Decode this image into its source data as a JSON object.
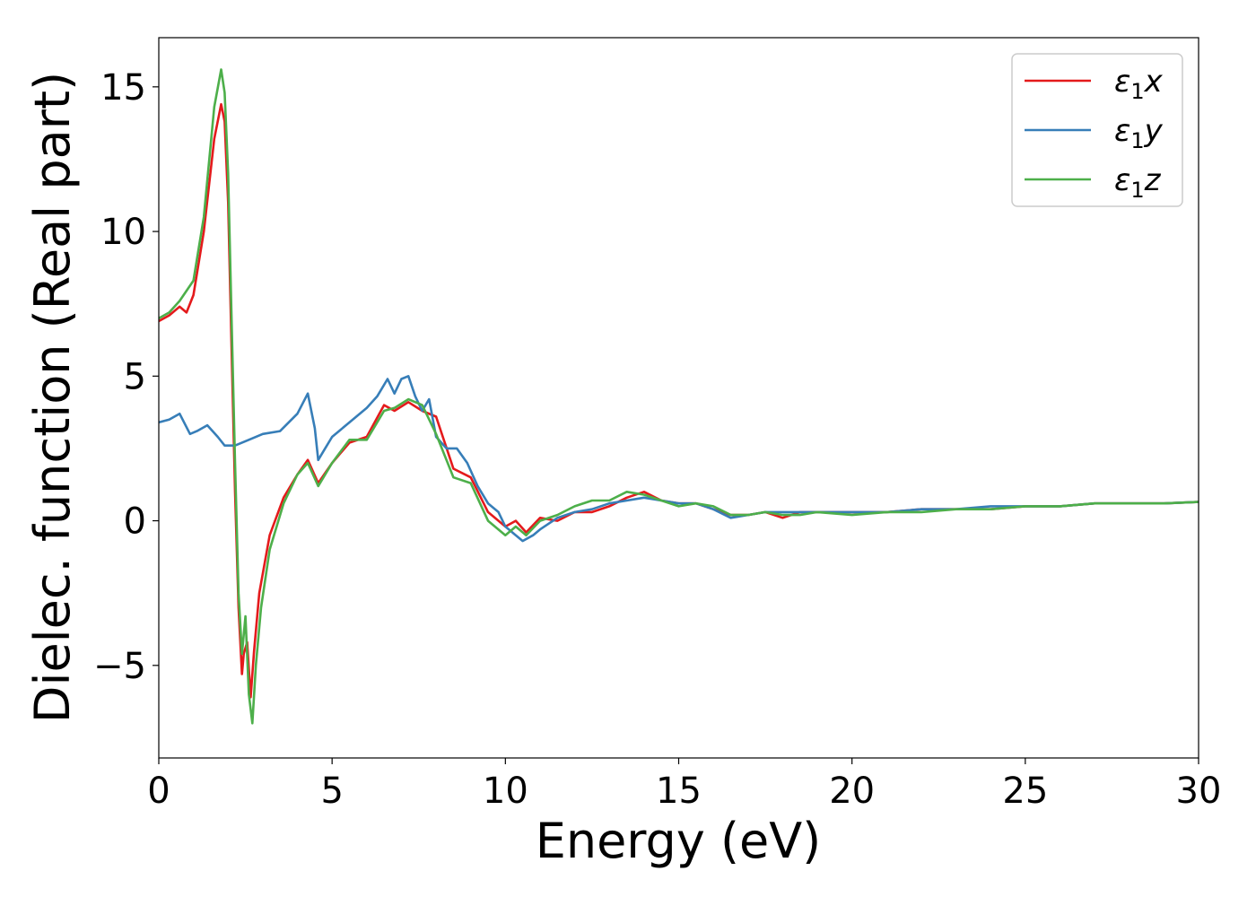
{
  "chart_data": {
    "type": "line",
    "xlabel": "Energy (eV)",
    "ylabel": "Dielec. function (Real part)",
    "xlim": [
      0,
      30
    ],
    "ylim": [
      -8.2,
      16.7
    ],
    "xticks": [
      0,
      5,
      10,
      15,
      20,
      25,
      30
    ],
    "xtick_labels": [
      "0",
      "5",
      "10",
      "15",
      "20",
      "25",
      "30"
    ],
    "yticks": [
      -5,
      0,
      5,
      10,
      15
    ],
    "ytick_labels": [
      "−5",
      "0",
      "5",
      "10",
      "15"
    ],
    "grid": false,
    "legend_position": "top-right",
    "legend": [
      {
        "symbol": "ε",
        "sub": "1",
        "suffix": "x",
        "color": "#e41a1c"
      },
      {
        "symbol": "ε",
        "sub": "1",
        "suffix": "y",
        "color": "#377eb8"
      },
      {
        "symbol": "ε",
        "sub": "1",
        "suffix": "z",
        "color": "#4daf4a"
      }
    ],
    "series": [
      {
        "color": "#e41a1c",
        "x": [
          0,
          0.3,
          0.6,
          0.8,
          1.0,
          1.3,
          1.6,
          1.8,
          1.9,
          2.0,
          2.1,
          2.2,
          2.3,
          2.4,
          2.45,
          2.55,
          2.65,
          2.75,
          2.9,
          3.2,
          3.6,
          4.0,
          4.3,
          4.6,
          5.0,
          5.5,
          6.0,
          6.5,
          6.8,
          7.2,
          7.6,
          8.0,
          8.5,
          9.0,
          9.5,
          10.0,
          10.3,
          10.6,
          11.0,
          11.5,
          12.0,
          12.5,
          13.0,
          13.5,
          14.0,
          14.5,
          15.0,
          15.5,
          16.0,
          16.5,
          17.0,
          17.5,
          18.0,
          18.5,
          19.0,
          20.0,
          21.0,
          22.0,
          23.0,
          24.0,
          25.0,
          26.0,
          27.0,
          28.0,
          29.0,
          30.0
        ],
        "y": [
          6.9,
          7.1,
          7.4,
          7.2,
          7.8,
          10.0,
          13.2,
          14.4,
          13.8,
          11.0,
          6.0,
          1.0,
          -3.0,
          -5.3,
          -4.6,
          -4.2,
          -6.1,
          -4.5,
          -2.5,
          -0.5,
          0.8,
          1.6,
          2.1,
          1.3,
          2.0,
          2.7,
          2.9,
          4.0,
          3.8,
          4.1,
          3.8,
          3.6,
          1.8,
          1.5,
          0.3,
          -0.2,
          0.0,
          -0.4,
          0.1,
          0.0,
          0.3,
          0.3,
          0.5,
          0.8,
          1.0,
          0.7,
          0.6,
          0.6,
          0.4,
          0.2,
          0.2,
          0.3,
          0.1,
          0.3,
          0.3,
          0.3,
          0.3,
          0.4,
          0.4,
          0.4,
          0.5,
          0.5,
          0.6,
          0.6,
          0.6,
          0.65
        ]
      },
      {
        "color": "#377eb8",
        "x": [
          0,
          0.3,
          0.6,
          0.9,
          1.1,
          1.4,
          1.7,
          1.9,
          2.2,
          2.6,
          3.0,
          3.5,
          4.0,
          4.3,
          4.5,
          4.6,
          4.8,
          5.0,
          5.5,
          6.0,
          6.3,
          6.6,
          6.8,
          7.0,
          7.2,
          7.4,
          7.6,
          7.8,
          8.0,
          8.3,
          8.6,
          8.9,
          9.2,
          9.5,
          9.8,
          10.0,
          10.3,
          10.5,
          10.8,
          11.0,
          11.5,
          12.0,
          12.5,
          13.0,
          13.5,
          14.0,
          14.5,
          15.0,
          15.5,
          16.0,
          16.5,
          17.0,
          17.5,
          18.0,
          19.0,
          20.0,
          21.0,
          22.0,
          23.0,
          24.0,
          25.0,
          26.0,
          27.0,
          28.0,
          29.0,
          30.0
        ],
        "y": [
          3.4,
          3.5,
          3.7,
          3.0,
          3.1,
          3.3,
          2.9,
          2.6,
          2.6,
          2.8,
          3.0,
          3.1,
          3.7,
          4.4,
          3.2,
          2.1,
          2.5,
          2.9,
          3.4,
          3.9,
          4.3,
          4.9,
          4.4,
          4.9,
          5.0,
          4.3,
          3.8,
          4.2,
          2.9,
          2.5,
          2.5,
          2.0,
          1.2,
          0.6,
          0.3,
          -0.2,
          -0.5,
          -0.7,
          -0.5,
          -0.3,
          0.1,
          0.3,
          0.4,
          0.6,
          0.7,
          0.8,
          0.7,
          0.6,
          0.6,
          0.4,
          0.1,
          0.2,
          0.3,
          0.3,
          0.3,
          0.3,
          0.3,
          0.4,
          0.4,
          0.5,
          0.5,
          0.5,
          0.6,
          0.6,
          0.6,
          0.65
        ]
      },
      {
        "color": "#4daf4a",
        "x": [
          0,
          0.3,
          0.6,
          1.0,
          1.3,
          1.6,
          1.8,
          1.9,
          2.0,
          2.1,
          2.2,
          2.3,
          2.4,
          2.5,
          2.6,
          2.7,
          2.8,
          2.95,
          3.2,
          3.6,
          4.0,
          4.3,
          4.6,
          5.0,
          5.5,
          6.0,
          6.5,
          6.8,
          7.2,
          7.6,
          8.0,
          8.5,
          9.0,
          9.5,
          10.0,
          10.3,
          10.6,
          11.0,
          11.5,
          12.0,
          12.5,
          13.0,
          13.5,
          14.0,
          14.5,
          15.0,
          15.5,
          16.0,
          16.5,
          17.0,
          17.5,
          18.0,
          18.5,
          19.0,
          20.0,
          21.0,
          22.0,
          23.0,
          24.0,
          25.0,
          26.0,
          27.0,
          28.0,
          29.0,
          30.0
        ],
        "y": [
          7.0,
          7.2,
          7.6,
          8.3,
          10.5,
          14.3,
          15.6,
          14.8,
          12.0,
          7.0,
          2.0,
          -2.5,
          -4.6,
          -3.3,
          -6.0,
          -7.0,
          -5.0,
          -3.0,
          -1.0,
          0.6,
          1.6,
          2.0,
          1.2,
          2.0,
          2.8,
          2.8,
          3.8,
          3.9,
          4.2,
          4.0,
          3.0,
          1.5,
          1.3,
          0.0,
          -0.5,
          -0.2,
          -0.5,
          0.0,
          0.2,
          0.5,
          0.7,
          0.7,
          1.0,
          0.9,
          0.7,
          0.5,
          0.6,
          0.5,
          0.2,
          0.2,
          0.3,
          0.2,
          0.2,
          0.3,
          0.2,
          0.3,
          0.3,
          0.4,
          0.4,
          0.5,
          0.5,
          0.6,
          0.6,
          0.6,
          0.65
        ]
      }
    ]
  }
}
